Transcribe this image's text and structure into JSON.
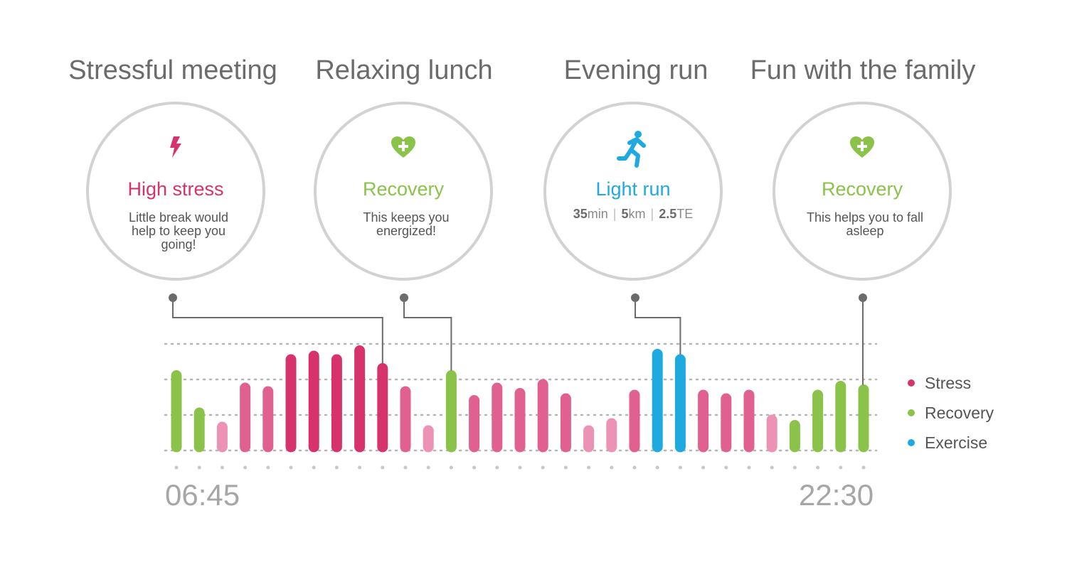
{
  "events": [
    {
      "title": "Stressful meeting",
      "label": "High stress",
      "description": "Little break would help to keep you going!",
      "icon": "lightning-icon",
      "color": "#d6336c",
      "bar_index": 9
    },
    {
      "title": "Relaxing lunch",
      "label": "Recovery",
      "description": "This keeps you energized!",
      "icon": "heart-plus-icon",
      "color": "#8bc34a",
      "bar_index": 12
    },
    {
      "title": "Evening run",
      "label": "Light run",
      "icon": "runner-icon",
      "color": "#1eaae0",
      "bar_index": 22,
      "stats": {
        "duration_value": "35",
        "duration_unit": "min",
        "distance_value": "5",
        "distance_unit": "km",
        "te_value": "2.5",
        "te_unit": "TE",
        "separator": "|"
      }
    },
    {
      "title": "Fun with the family",
      "label": "Recovery",
      "description": "This helps you to fall asleep",
      "icon": "heart-plus-icon",
      "color": "#8bc34a",
      "bar_index": 30
    }
  ],
  "chart_data": {
    "type": "bar",
    "x_start_label": "06:45",
    "x_end_label": "22:30",
    "ylim": [
      0,
      3
    ],
    "grid": true,
    "legend_position": "right",
    "series": [
      {
        "name": "Stress",
        "color": "#d6336c"
      },
      {
        "name": "Recovery",
        "color": "#8bc34a"
      },
      {
        "name": "Exercise",
        "color": "#1eaae0"
      }
    ],
    "bars": [
      {
        "category": "Recovery",
        "value": 2.25,
        "intensity": "high"
      },
      {
        "category": "Recovery",
        "value": 1.2,
        "intensity": "high"
      },
      {
        "category": "Stress",
        "value": 0.8,
        "intensity": "low"
      },
      {
        "category": "Stress",
        "value": 1.9,
        "intensity": "medium"
      },
      {
        "category": "Stress",
        "value": 1.8,
        "intensity": "medium"
      },
      {
        "category": "Stress",
        "value": 2.7,
        "intensity": "high"
      },
      {
        "category": "Stress",
        "value": 2.8,
        "intensity": "high"
      },
      {
        "category": "Stress",
        "value": 2.7,
        "intensity": "high"
      },
      {
        "category": "Stress",
        "value": 2.95,
        "intensity": "high"
      },
      {
        "category": "Stress",
        "value": 2.45,
        "intensity": "high"
      },
      {
        "category": "Stress",
        "value": 1.8,
        "intensity": "medium"
      },
      {
        "category": "Stress",
        "value": 0.7,
        "intensity": "low"
      },
      {
        "category": "Recovery",
        "value": 2.25,
        "intensity": "high"
      },
      {
        "category": "Stress",
        "value": 1.55,
        "intensity": "medium"
      },
      {
        "category": "Stress",
        "value": 1.9,
        "intensity": "medium"
      },
      {
        "category": "Stress",
        "value": 1.75,
        "intensity": "medium"
      },
      {
        "category": "Stress",
        "value": 2.0,
        "intensity": "medium"
      },
      {
        "category": "Stress",
        "value": 1.6,
        "intensity": "medium"
      },
      {
        "category": "Stress",
        "value": 0.7,
        "intensity": "low"
      },
      {
        "category": "Stress",
        "value": 0.9,
        "intensity": "low"
      },
      {
        "category": "Stress",
        "value": 1.7,
        "intensity": "medium"
      },
      {
        "category": "Exercise",
        "value": 2.85,
        "intensity": "high"
      },
      {
        "category": "Exercise",
        "value": 2.7,
        "intensity": "high"
      },
      {
        "category": "Stress",
        "value": 1.7,
        "intensity": "medium"
      },
      {
        "category": "Stress",
        "value": 1.6,
        "intensity": "medium"
      },
      {
        "category": "Stress",
        "value": 1.7,
        "intensity": "medium"
      },
      {
        "category": "Stress",
        "value": 1.0,
        "intensity": "low"
      },
      {
        "category": "Recovery",
        "value": 0.85,
        "intensity": "high"
      },
      {
        "category": "Recovery",
        "value": 1.7,
        "intensity": "high"
      },
      {
        "category": "Recovery",
        "value": 1.95,
        "intensity": "high"
      },
      {
        "category": "Recovery",
        "value": 1.85,
        "intensity": "high"
      }
    ],
    "colors": {
      "stress_high": "#d6336c",
      "stress_medium": "#e0608f",
      "stress_low": "#ec92b4",
      "recovery": "#8bc34a",
      "exercise": "#1eaae0",
      "grid": "#b5b5b5",
      "connector": "#6b6b6b",
      "tick_dot": "#c8c8c8"
    }
  }
}
